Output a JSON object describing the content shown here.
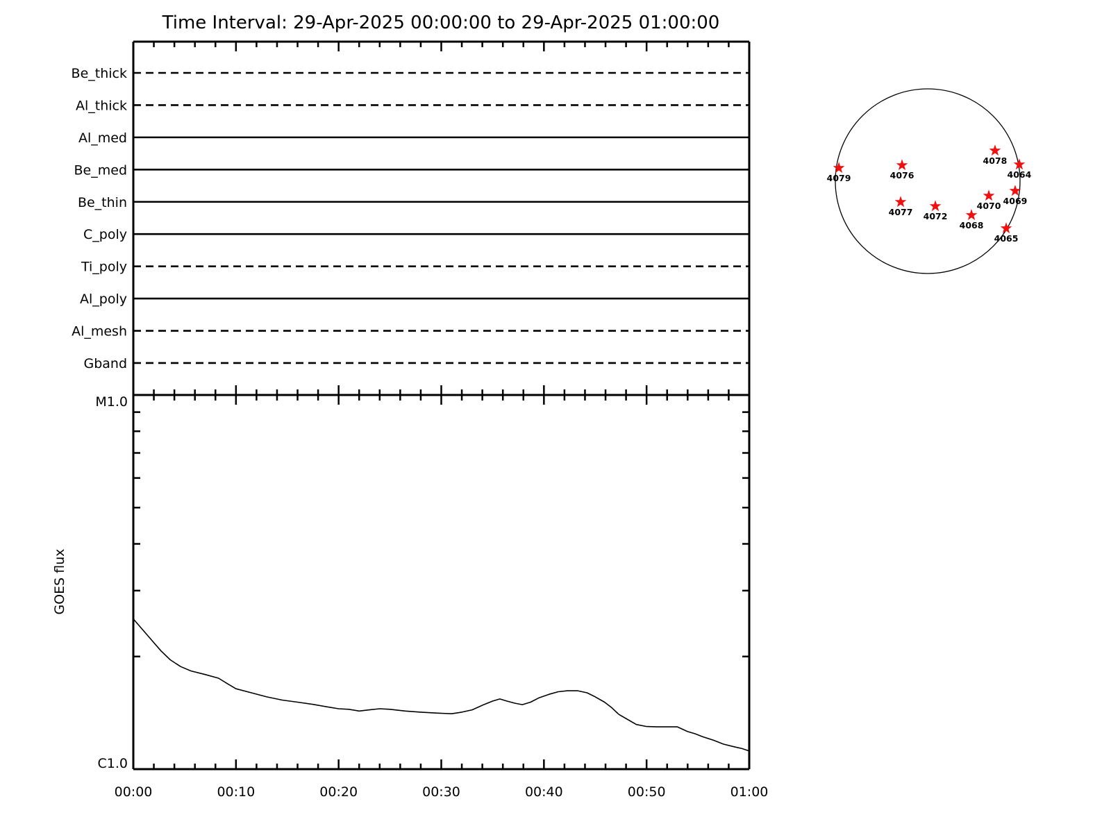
{
  "title": "Time Interval: 29-Apr-2025 00:00:00 to 29-Apr-2025 01:00:00",
  "chart_data": [
    {
      "type": "line",
      "id": "xrt-filter-timeline",
      "description": "Instrument filter availability timeline; horizontal line per filter, dashed or solid",
      "x_axis": {
        "range_minutes": [
          0,
          60
        ],
        "major_tick_minutes": 10,
        "minor_tick_minutes": 2,
        "tick_labels_shown": false
      },
      "filters": [
        {
          "name": "Be_thick",
          "line_style": "dashed"
        },
        {
          "name": "Al_thick",
          "line_style": "dashed"
        },
        {
          "name": "Al_med",
          "line_style": "solid"
        },
        {
          "name": "Be_med",
          "line_style": "solid"
        },
        {
          "name": "Be_thin",
          "line_style": "solid"
        },
        {
          "name": "C_poly",
          "line_style": "solid"
        },
        {
          "name": "Ti_poly",
          "line_style": "dashed"
        },
        {
          "name": "Al_poly",
          "line_style": "solid"
        },
        {
          "name": "Al_mesh",
          "line_style": "dashed"
        },
        {
          "name": "Gband",
          "line_style": "dashed"
        }
      ]
    },
    {
      "type": "line",
      "id": "goes-flux",
      "ylabel": "GOES flux",
      "y_axis": {
        "scale": "log",
        "top_label": "M1.0",
        "bottom_label": "C1.0",
        "min_c_units": 1.0,
        "max_c_units": 10.0,
        "minor_ticks_c_units": [
          2,
          3,
          4,
          5,
          6,
          7,
          8,
          9
        ],
        "flux_units": "GOES C-class units (C1.0=1, M1.0=10)"
      },
      "x_axis": {
        "range_minutes": [
          0,
          60
        ],
        "major_tick_minutes": 10,
        "minor_tick_minutes": 2,
        "tick_labels": [
          "00:00",
          "00:10",
          "00:20",
          "00:30",
          "00:40",
          "00:50",
          "01:00"
        ]
      },
      "series": [
        {
          "name": "goes-xray-flux",
          "color": "#000000",
          "points_t_min_vs_c": [
            [
              0,
              2.52
            ],
            [
              0.9,
              2.36
            ],
            [
              1.8,
              2.21
            ],
            [
              2.7,
              2.07
            ],
            [
              3.6,
              1.96
            ],
            [
              4.6,
              1.88
            ],
            [
              5.6,
              1.83
            ],
            [
              7,
              1.79
            ],
            [
              8.3,
              1.75
            ],
            [
              9.2,
              1.69
            ],
            [
              10,
              1.64
            ],
            [
              11.5,
              1.6
            ],
            [
              13,
              1.56
            ],
            [
              14.5,
              1.53
            ],
            [
              16,
              1.51
            ],
            [
              17.5,
              1.49
            ],
            [
              19,
              1.465
            ],
            [
              20,
              1.45
            ],
            [
              21,
              1.445
            ],
            [
              22,
              1.43
            ],
            [
              23,
              1.44
            ],
            [
              24,
              1.45
            ],
            [
              25,
              1.445
            ],
            [
              26.5,
              1.43
            ],
            [
              28,
              1.42
            ],
            [
              29.5,
              1.412
            ],
            [
              31,
              1.406
            ],
            [
              32,
              1.42
            ],
            [
              33,
              1.44
            ],
            [
              34.2,
              1.49
            ],
            [
              35,
              1.52
            ],
            [
              35.7,
              1.54
            ],
            [
              36.4,
              1.52
            ],
            [
              37.2,
              1.5
            ],
            [
              37.9,
              1.487
            ],
            [
              38.7,
              1.51
            ],
            [
              39.5,
              1.55
            ],
            [
              40.5,
              1.585
            ],
            [
              41.4,
              1.61
            ],
            [
              42.3,
              1.62
            ],
            [
              43.3,
              1.62
            ],
            [
              44.2,
              1.6
            ],
            [
              45,
              1.56
            ],
            [
              45.9,
              1.51
            ],
            [
              46.6,
              1.46
            ],
            [
              47.3,
              1.4
            ],
            [
              48.1,
              1.36
            ],
            [
              49,
              1.316
            ],
            [
              50,
              1.3
            ],
            [
              51,
              1.297
            ],
            [
              52,
              1.297
            ],
            [
              53,
              1.297
            ],
            [
              54,
              1.26
            ],
            [
              54.7,
              1.244
            ],
            [
              55.5,
              1.22
            ],
            [
              56.5,
              1.195
            ],
            [
              57.5,
              1.166
            ],
            [
              58.5,
              1.148
            ],
            [
              59.3,
              1.135
            ],
            [
              60,
              1.118
            ]
          ]
        }
      ]
    },
    {
      "type": "scatter",
      "id": "solar-disk-map",
      "description": "Active regions plotted on the solar disk; coordinates in fractions of solar radius (x east-west, y north-south, screen convention)",
      "marker": {
        "shape": "star",
        "color": "#f01010"
      },
      "active_regions": [
        {
          "label": "4079",
          "x": -0.962,
          "y": -0.143
        },
        {
          "label": "4076",
          "x": -0.278,
          "y": -0.173
        },
        {
          "label": "4078",
          "x": 0.729,
          "y": -0.331
        },
        {
          "label": "4064",
          "x": 0.992,
          "y": -0.18
        },
        {
          "label": "4069",
          "x": 0.947,
          "y": 0.105
        },
        {
          "label": "4070",
          "x": 0.662,
          "y": 0.158
        },
        {
          "label": "4077",
          "x": -0.293,
          "y": 0.226
        },
        {
          "label": "4072",
          "x": 0.083,
          "y": 0.271
        },
        {
          "label": "4068",
          "x": 0.474,
          "y": 0.368
        },
        {
          "label": "4065",
          "x": 0.85,
          "y": 0.511
        }
      ]
    }
  ]
}
